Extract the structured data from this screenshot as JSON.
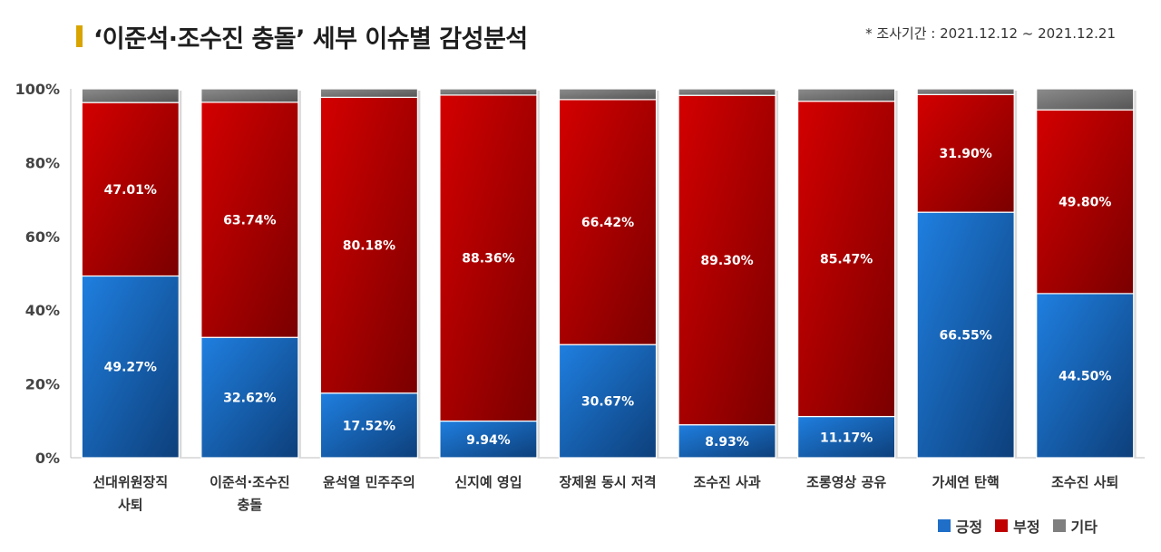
{
  "header": {
    "title": "‘이준석·조수진 충돌’ 세부 이슈별 감성분석",
    "period": "* 조사기간 : 2021.12.12 ~ 2021.12.21"
  },
  "legend": [
    {
      "label": "긍정",
      "color": "#1f6fc8"
    },
    {
      "label": "부정",
      "color": "#c00000"
    },
    {
      "label": "기타",
      "color": "#7f7f7f"
    }
  ],
  "chart_data": {
    "type": "bar",
    "stacked": true,
    "ylim": [
      0,
      100
    ],
    "yticks": [
      "0%",
      "20%",
      "40%",
      "60%",
      "80%",
      "100%"
    ],
    "categories": [
      [
        "선대위원장직",
        "사퇴"
      ],
      [
        "이준석·조수진",
        "충돌"
      ],
      [
        "윤석열 민주주의"
      ],
      [
        "신지예 영입"
      ],
      [
        "장제원 동시 저격"
      ],
      [
        "조수진 사과"
      ],
      [
        "조롱영상 공유"
      ],
      [
        "가세연 탄핵"
      ],
      [
        "조수진 사퇴"
      ]
    ],
    "series": [
      {
        "name": "긍정",
        "color": "#1f6fc8",
        "values": [
          49.27,
          32.62,
          17.52,
          9.94,
          30.67,
          8.93,
          11.17,
          66.55,
          44.5
        ],
        "labels": [
          "49.27%",
          "32.62%",
          "17.52%",
          "9.94%",
          "30.67%",
          "8.93%",
          "11.17%",
          "66.55%",
          "44.50%"
        ]
      },
      {
        "name": "부정",
        "color": "#c00000",
        "values": [
          47.01,
          63.74,
          80.18,
          88.36,
          66.42,
          89.3,
          85.47,
          31.9,
          49.8
        ],
        "labels": [
          "47.01%",
          "63.74%",
          "80.18%",
          "88.36%",
          "66.42%",
          "89.30%",
          "85.47%",
          "31.90%",
          "49.80%"
        ]
      },
      {
        "name": "기타",
        "color": "#7f7f7f",
        "values": [
          3.72,
          3.64,
          2.3,
          1.7,
          2.91,
          1.77,
          3.36,
          1.55,
          5.7
        ],
        "labels": []
      }
    ]
  }
}
